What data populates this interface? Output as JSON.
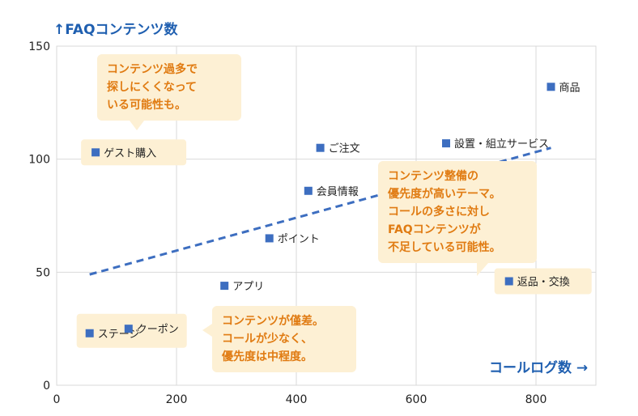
{
  "chart_data": {
    "type": "scatter",
    "y_axis_title": "↑FAQコンテンツ数",
    "x_axis_title": "コールログ数 →",
    "xlim": [
      0,
      900
    ],
    "ylim": [
      0,
      150
    ],
    "x_ticks": [
      "0",
      "200",
      "400",
      "600",
      "800"
    ],
    "y_ticks": [
      "0",
      "50",
      "100",
      "150"
    ],
    "grid": true,
    "points": [
      {
        "label": "商品",
        "x": 825,
        "y": 132
      },
      {
        "label": "ゲスト購入",
        "x": 65,
        "y": 103
      },
      {
        "label": "ご注文",
        "x": 440,
        "y": 105
      },
      {
        "label": "設置・組立サービス",
        "x": 650,
        "y": 107
      },
      {
        "label": "会員情報",
        "x": 420,
        "y": 86
      },
      {
        "label": "ポイント",
        "x": 355,
        "y": 65
      },
      {
        "label": "アプリ",
        "x": 280,
        "y": 44
      },
      {
        "label": "返品・交換",
        "x": 755,
        "y": 46
      },
      {
        "label": "ステージ",
        "x": 55,
        "y": 23
      },
      {
        "label": "クーポン",
        "x": 120,
        "y": 25
      }
    ],
    "trendline": {
      "x": [
        55,
        825
      ],
      "y": [
        49,
        105
      ]
    },
    "colors": {
      "point": "#3d6ec0",
      "trend": "#3d6ec0",
      "callout_bg": "#fdf0d4",
      "callout_text": "#e07b12",
      "axis_title": "#1f5fb0"
    }
  },
  "callouts": [
    {
      "text": "コンテンツ過多で\n探しにくくなって\nいる可能性も。"
    },
    {
      "text": "コンテンツ整備の\n優先度が高いテーマ。\nコールの多さに対し\nFAQコンテンツが\n不足している可能性。"
    },
    {
      "text": "コンテンツが僅差。\nコールが少なく、\n優先度は中程度。"
    }
  ]
}
